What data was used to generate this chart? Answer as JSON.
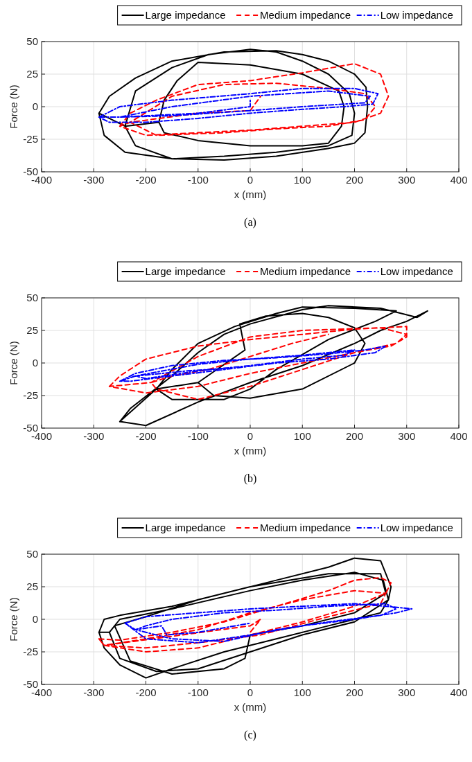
{
  "chart_data": [
    {
      "type": "line",
      "xlabel": "x (mm)",
      "ylabel": "Force (N)",
      "annotations": [
        "(a)"
      ],
      "xlim": [
        -400,
        400
      ],
      "xticks": [
        -400,
        -300,
        -200,
        -100,
        0,
        100,
        200,
        300,
        400
      ],
      "ylim": [
        -50,
        50
      ],
      "yticks": [
        -50,
        -25,
        0,
        25,
        50
      ],
      "grid": true,
      "legend": "top",
      "series": [
        {
          "name": "Large impedance",
          "color": "#000000",
          "line_style": "solid",
          "x": [
            -290,
            -280,
            -240,
            -150,
            -50,
            50,
            150,
            200,
            220,
            225,
            222,
            200,
            150,
            100,
            50,
            -50,
            -150,
            -220,
            -270,
            -290,
            -240,
            -220,
            -150,
            -50,
            50,
            150,
            195,
            200,
            190,
            150,
            100,
            50,
            0,
            -80,
            -150,
            -220,
            -240,
            -175,
            -165,
            -140,
            -100,
            0,
            100,
            170,
            180,
            175,
            150,
            100,
            0,
            -100,
            -165,
            -175
          ],
          "values": [
            -5,
            -22,
            -35,
            -40,
            -41,
            -38,
            -32,
            -28,
            -20,
            0,
            15,
            25,
            35,
            40,
            43,
            42,
            35,
            22,
            8,
            -5,
            -15,
            -30,
            -40,
            -38,
            -35,
            -30,
            -22,
            -5,
            10,
            25,
            35,
            42,
            44,
            40,
            30,
            12,
            -15,
            -12,
            5,
            20,
            34,
            32,
            25,
            12,
            0,
            -15,
            -28,
            -30,
            -30,
            -26,
            -20,
            -12
          ]
        },
        {
          "name": "Medium impedance",
          "color": "#ff0000",
          "line_style": "dashed",
          "x": [
            -250,
            -230,
            -180,
            -100,
            0,
            100,
            200,
            250,
            265,
            250,
            200,
            100,
            0,
            -100,
            -200,
            -250,
            -230,
            -150,
            -50,
            50,
            150,
            220,
            240,
            220,
            150,
            50,
            -50,
            -180,
            -230,
            -100,
            0,
            20
          ],
          "values": [
            -15,
            -5,
            5,
            17,
            20,
            26,
            33,
            25,
            8,
            -5,
            -12,
            -15,
            -18,
            -20,
            -22,
            -15,
            -12,
            8,
            17,
            18,
            14,
            10,
            0,
            -10,
            -15,
            -17,
            -20,
            -22,
            -12,
            -5,
            -3,
            8
          ]
        },
        {
          "name": "Low impedance",
          "color": "#0000ff",
          "line_style": "dashdot",
          "x": [
            -290,
            -250,
            -150,
            0,
            100,
            200,
            245,
            235,
            180,
            100,
            0,
            -100,
            -200,
            -270,
            -290,
            -250,
            -150,
            0,
            150,
            230,
            220,
            100,
            0,
            -150,
            -250,
            -100,
            0,
            0
          ],
          "values": [
            -8,
            0,
            5,
            10,
            14,
            14,
            10,
            2,
            0,
            -2,
            -5,
            -9,
            -12,
            -12,
            -8,
            -8,
            0,
            8,
            12,
            8,
            3,
            0,
            -3,
            -7,
            -8,
            -5,
            0,
            5
          ]
        }
      ]
    },
    {
      "type": "line",
      "xlabel": "x (mm)",
      "ylabel": "Force (N)",
      "annotations": [
        "(b)"
      ],
      "xlim": [
        -400,
        400
      ],
      "xticks": [
        -400,
        -300,
        -200,
        -100,
        0,
        100,
        200,
        300,
        400
      ],
      "ylim": [
        -50,
        50
      ],
      "yticks": [
        -50,
        -25,
        0,
        25,
        50
      ],
      "grid": true,
      "legend": "top",
      "series": [
        {
          "name": "Large impedance",
          "color": "#000000",
          "line_style": "solid",
          "x": [
            -250,
            -230,
            -150,
            -100,
            -50,
            0,
            100,
            150,
            250,
            290,
            320,
            340,
            300,
            250,
            200,
            100,
            0,
            -100,
            -200,
            -250,
            -180,
            -150,
            -100,
            -30,
            50,
            100,
            200,
            280,
            240,
            150,
            50,
            0,
            -50,
            -150,
            -180,
            -100,
            -70,
            0,
            100,
            200,
            220,
            200,
            150,
            100,
            30,
            -20,
            -10,
            -100
          ],
          "values": [
            -45,
            -35,
            -10,
            8,
            22,
            30,
            41,
            44,
            42,
            38,
            35,
            40,
            32,
            25,
            15,
            -2,
            -15,
            -30,
            -48,
            -45,
            -20,
            -5,
            15,
            28,
            38,
            43,
            42,
            40,
            32,
            18,
            -5,
            -20,
            -28,
            -28,
            -20,
            -15,
            -25,
            -27,
            -20,
            0,
            15,
            27,
            35,
            38,
            36,
            30,
            10,
            -15
          ]
        },
        {
          "name": "Medium impedance",
          "color": "#ff0000",
          "line_style": "dashed",
          "x": [
            -270,
            -250,
            -200,
            -100,
            0,
            100,
            200,
            300,
            300,
            270,
            200,
            100,
            0,
            -100,
            -200,
            -270,
            -190,
            -100,
            0,
            100,
            250,
            300,
            280,
            200,
            100,
            0,
            -100,
            -180,
            -190,
            -150,
            -80,
            0,
            80,
            150
          ],
          "values": [
            -18,
            -10,
            3,
            13,
            18,
            22,
            26,
            28,
            20,
            13,
            8,
            0,
            -8,
            -18,
            -23,
            -18,
            -15,
            5,
            20,
            25,
            27,
            22,
            15,
            8,
            -5,
            -18,
            -28,
            -20,
            -15,
            -10,
            -5,
            5,
            15,
            22
          ]
        },
        {
          "name": "Low impedance",
          "color": "#0000ff",
          "line_style": "dashdot",
          "x": [
            -250,
            -220,
            -150,
            -50,
            50,
            150,
            220,
            260,
            240,
            150,
            50,
            -50,
            -150,
            -230,
            -250,
            -220,
            -100,
            0,
            100,
            200,
            180,
            100,
            0,
            -100,
            -200,
            -220,
            -120,
            -40
          ],
          "values": [
            -14,
            -8,
            -2,
            2,
            4,
            7,
            10,
            13,
            8,
            3,
            0,
            -5,
            -10,
            -14,
            -14,
            -10,
            -1,
            3,
            6,
            10,
            6,
            3,
            -2,
            -6,
            -12,
            -10,
            -6,
            -4
          ]
        }
      ]
    },
    {
      "type": "line",
      "xlabel": "x (mm)",
      "ylabel": "Force (N)",
      "annotations": [
        "(c)"
      ],
      "xlim": [
        -400,
        400
      ],
      "xticks": [
        -400,
        -300,
        -200,
        -100,
        0,
        100,
        200,
        300,
        400
      ],
      "ylim": [
        -50,
        50
      ],
      "yticks": [
        -50,
        -25,
        0,
        25,
        50
      ],
      "grid": true,
      "legend": "top",
      "series": [
        {
          "name": "Large impedance",
          "color": "#000000",
          "line_style": "solid",
          "x": [
            -290,
            -280,
            -250,
            -150,
            -50,
            50,
            150,
            200,
            250,
            270,
            265,
            250,
            150,
            50,
            -50,
            -150,
            -200,
            -250,
            -280,
            -290,
            -270,
            -250,
            -150,
            0,
            100,
            200,
            255,
            265,
            200,
            100,
            0,
            -100,
            -180,
            -250,
            -270,
            -260,
            -200,
            -100,
            0,
            150,
            250,
            260,
            200,
            100,
            0,
            -10,
            -50,
            -150,
            -230,
            -260
          ],
          "values": [
            -10,
            0,
            3,
            10,
            20,
            30,
            40,
            47,
            45,
            25,
            15,
            5,
            -5,
            -15,
            -25,
            -38,
            -45,
            -35,
            -22,
            -10,
            -10,
            0,
            8,
            22,
            30,
            36,
            30,
            15,
            -2,
            -12,
            -25,
            -38,
            -40,
            -30,
            -10,
            -5,
            2,
            15,
            25,
            35,
            35,
            20,
            5,
            -5,
            -12,
            -30,
            -38,
            -42,
            -32,
            -5
          ]
        },
        {
          "name": "Medium impedance",
          "color": "#ff0000",
          "line_style": "dashed",
          "x": [
            -290,
            -250,
            -150,
            -50,
            50,
            150,
            200,
            250,
            270,
            260,
            200,
            100,
            0,
            -100,
            -200,
            -280,
            -290,
            -280,
            -200,
            -100,
            0,
            100,
            200,
            260,
            250,
            150,
            20,
            -100,
            -200,
            -280,
            0,
            20,
            0
          ],
          "values": [
            -15,
            -16,
            -10,
            -2,
            10,
            22,
            30,
            32,
            28,
            20,
            10,
            -2,
            -12,
            -22,
            -25,
            -20,
            -15,
            -20,
            -15,
            -8,
            5,
            15,
            22,
            20,
            12,
            2,
            -12,
            -18,
            -22,
            -20,
            -5,
            0,
            -10
          ]
        },
        {
          "name": "Low impedance",
          "color": "#0000ff",
          "line_style": "dashdot",
          "x": [
            -240,
            -200,
            -100,
            0,
            100,
            200,
            260,
            310,
            280,
            200,
            100,
            0,
            -100,
            -200,
            -240,
            -220,
            -150,
            -50,
            50,
            150,
            250,
            280,
            260,
            150,
            50,
            -50,
            -150,
            -200,
            -220,
            -170,
            -160,
            -100,
            0
          ],
          "values": [
            -3,
            2,
            5,
            8,
            10,
            12,
            10,
            8,
            5,
            0,
            -5,
            -12,
            -18,
            -15,
            -3,
            -8,
            -15,
            -17,
            -8,
            -2,
            3,
            8,
            12,
            10,
            7,
            5,
            0,
            -5,
            -8,
            -5,
            -12,
            -10,
            -3
          ]
        }
      ]
    }
  ]
}
